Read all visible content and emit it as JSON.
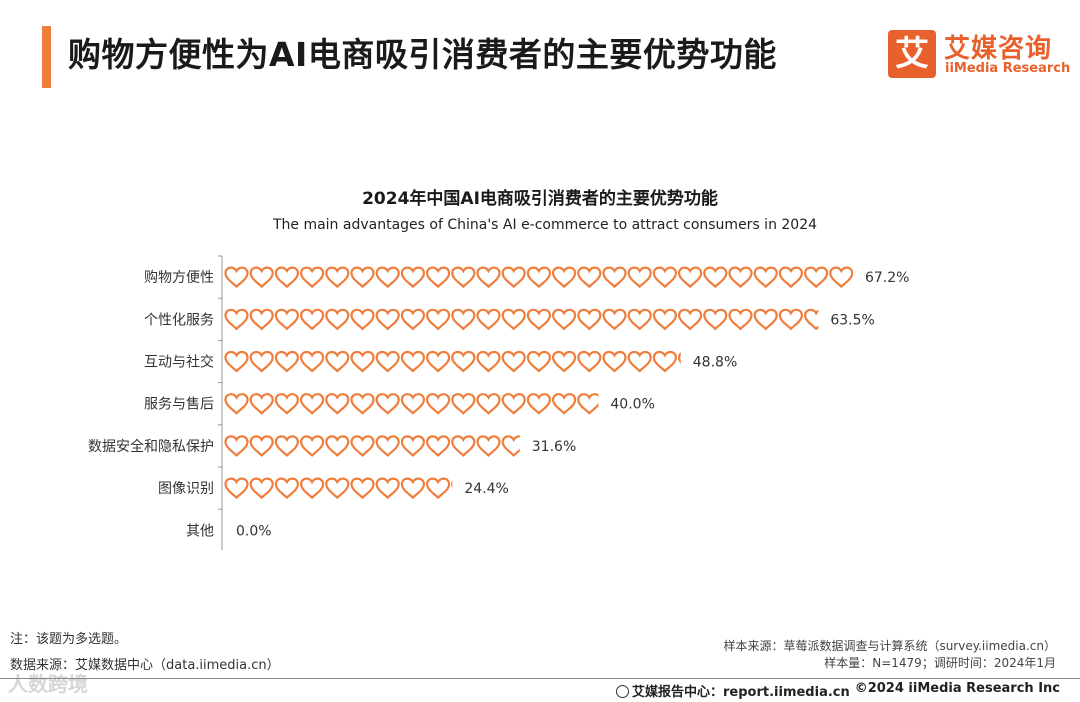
{
  "header": {
    "title": "购物方便性为AI电商吸引消费者的主要优势功能",
    "logo_mark": "艾",
    "logo_cn": "艾媒咨询",
    "logo_en": "iiMedia Research"
  },
  "chart_data": {
    "type": "bar",
    "title": "2024年中国AI电商吸引消费者的主要优势功能",
    "subtitle": "The main advantages of China's AI e-commerce to attract consumers in 2024",
    "categories": [
      "购物方便性",
      "个性化服务",
      "互动与社交",
      "服务与售后",
      "数据安全和隐私保护",
      "图像识别",
      "其他"
    ],
    "values": [
      67.2,
      63.5,
      48.8,
      40.0,
      31.6,
      24.4,
      0.0
    ],
    "value_labels": [
      "67.2%",
      "63.5%",
      "48.8%",
      "40.0%",
      "31.6%",
      "24.4%",
      "0.0%"
    ],
    "unit": "%",
    "marker": "heart",
    "color": "#ef7d3b"
  },
  "footer": {
    "note": "注：该题为多选题。",
    "source_left": "数据来源：艾媒数据中心（data.iimedia.cn）",
    "source_right_1": "样本来源：草莓派数据调查与计算系统（survey.iimedia.cn）",
    "source_right_2": "样本量：N=1479；调研时间：2024年1月",
    "center": "艾媒报告中心：report.iimedia.cn",
    "right": "©2024  iiMedia Research  Inc",
    "watermark": "人数跨境"
  }
}
